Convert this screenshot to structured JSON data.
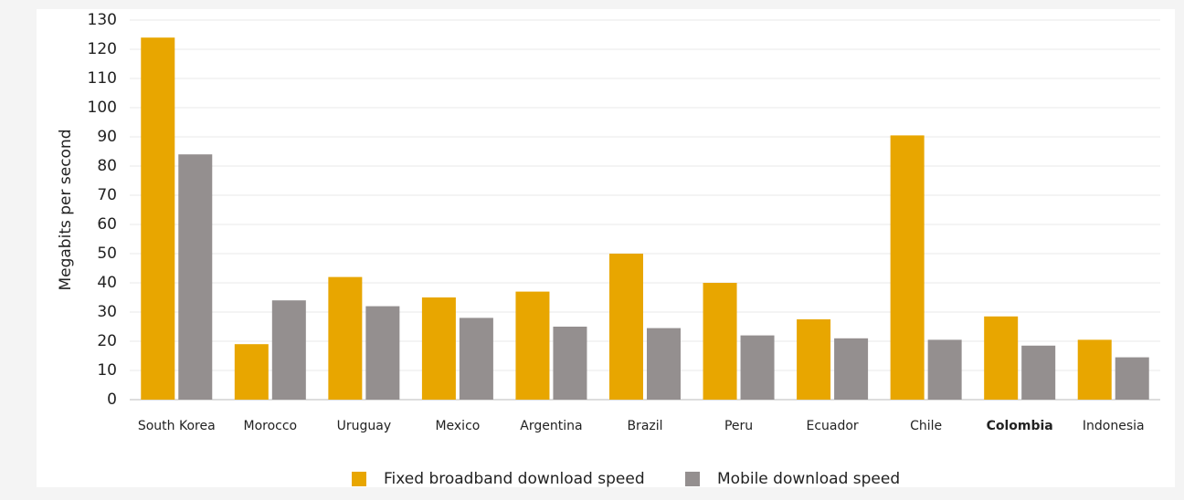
{
  "chart_data": {
    "type": "bar",
    "y_label": "Megabits per second",
    "categories": [
      "South Korea",
      "Morocco",
      "Uruguay",
      "Mexico",
      "Argentina",
      "Brazil",
      "Peru",
      "Ecuador",
      "Chile",
      "Colombia",
      "Indonesia"
    ],
    "series": [
      {
        "name": "Fixed broadband download speed",
        "color": "#e8a600",
        "values": [
          124,
          19,
          42,
          35,
          37,
          50,
          40,
          27.5,
          90.5,
          28.5,
          20.5
        ]
      },
      {
        "name": "Mobile download speed",
        "color": "#948f8f",
        "values": [
          84,
          34,
          32,
          28,
          25,
          24.5,
          22,
          21,
          20.5,
          18.5,
          14.5
        ]
      }
    ],
    "bold_category_index": 9,
    "ylim": [
      0,
      130
    ],
    "yticks": [
      0,
      10,
      20,
      30,
      40,
      50,
      60,
      70,
      80,
      90,
      100,
      110,
      120,
      130
    ],
    "grid": true,
    "legend": "bottom"
  }
}
